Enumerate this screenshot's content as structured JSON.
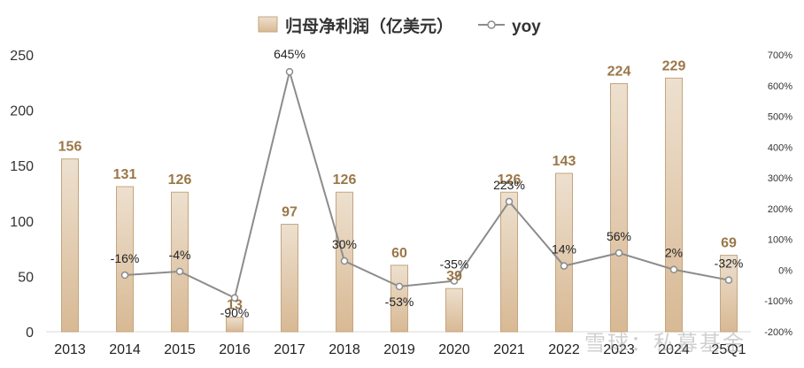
{
  "chart_data": {
    "type": "bar+line",
    "categories": [
      "2013",
      "2014",
      "2015",
      "2016",
      "2017",
      "2018",
      "2019",
      "2020",
      "2021",
      "2022",
      "2023",
      "2024",
      "25Q1"
    ],
    "series": [
      {
        "name": "归母净利润（亿美元）",
        "type": "bar",
        "axis": "left",
        "values": [
          156,
          131,
          126,
          13,
          97,
          126,
          60,
          39,
          126,
          143,
          224,
          229,
          69
        ],
        "labels": [
          "156",
          "131",
          "126",
          "13",
          "97",
          "126",
          "60",
          "39",
          "126",
          "143",
          "224",
          "229",
          "69"
        ]
      },
      {
        "name": "yoy",
        "type": "line",
        "axis": "right",
        "values": [
          null,
          -16,
          -4,
          -90,
          645,
          30,
          -53,
          -35,
          223,
          14,
          56,
          2,
          -32
        ],
        "labels": [
          "",
          "-16%",
          "-4%",
          "-90%",
          "645%",
          "30%",
          "-53%",
          "-35%",
          "223%",
          "14%",
          "56%",
          "2%",
          "-32%"
        ]
      }
    ],
    "y_left": {
      "ylim": [
        0,
        250
      ],
      "ticks": [
        "0",
        "50",
        "100",
        "150",
        "200",
        "250"
      ]
    },
    "y_right": {
      "ylim": [
        -200,
        700
      ],
      "ticks": [
        "-200%",
        "-100%",
        "0%",
        "100%",
        "200%",
        "300%",
        "400%",
        "500%",
        "600%",
        "700%"
      ]
    },
    "legend": {
      "position": "top-center",
      "bar_label": "归母净利润（亿美元）",
      "line_label": "yoy"
    },
    "colors": {
      "bar_top": "#ede0cf",
      "bar_bottom": "#d8b994",
      "bar_border": "#c4a57f",
      "bar_label": "#9b7748",
      "line": "#8c8c8c"
    }
  },
  "watermark": "雪球：私募基金"
}
